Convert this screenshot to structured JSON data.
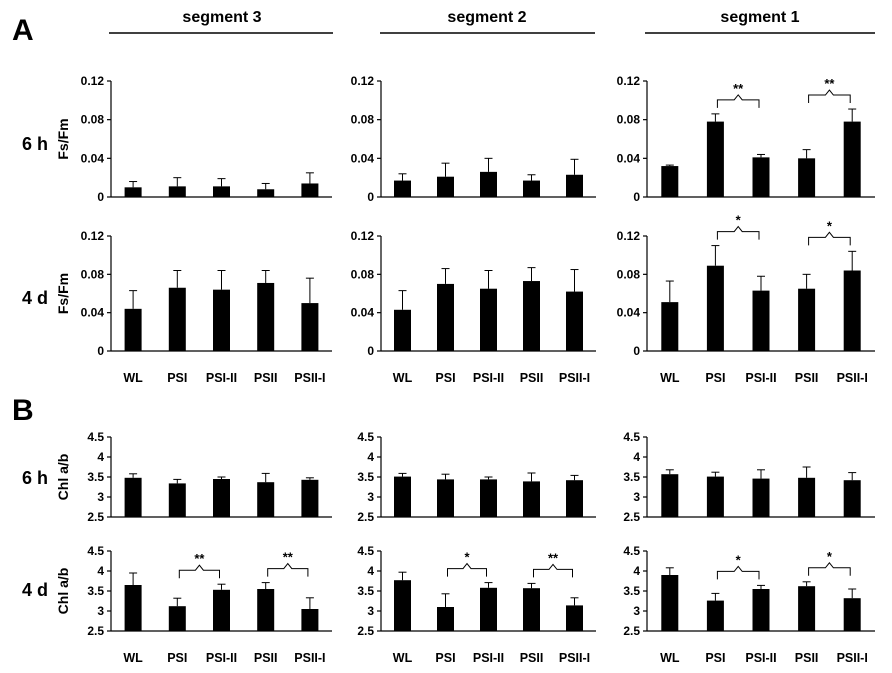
{
  "figure": {
    "panel_labels": [
      "A",
      "B"
    ],
    "segment_titles": [
      "segment 3",
      "segment 2",
      "segment 1"
    ],
    "row_labels": [
      "6 h",
      "4 d",
      "6 h",
      "4 d"
    ]
  },
  "chart_data": [
    {
      "type": "bar",
      "panel": "A",
      "time": "6 h",
      "segment": "segment 3",
      "ylabel": "Fs/Fm",
      "ylim": [
        0,
        0.12
      ],
      "yticks": [
        "0",
        "0.04",
        "0.08",
        "0.12"
      ],
      "categories": [
        "WL",
        "PSI",
        "PSI-II",
        "PSII",
        "PSII-I"
      ],
      "values": [
        0.01,
        0.011,
        0.011,
        0.008,
        0.014
      ],
      "errors": [
        0.006,
        0.009,
        0.008,
        0.006,
        0.011
      ],
      "significance": []
    },
    {
      "type": "bar",
      "panel": "A",
      "time": "6 h",
      "segment": "segment 2",
      "ylabel": "",
      "ylim": [
        0,
        0.12
      ],
      "yticks": [
        "0",
        "0.04",
        "0.08",
        "0.12"
      ],
      "categories": [
        "WL",
        "PSI",
        "PSI-II",
        "PSII",
        "PSII-I"
      ],
      "values": [
        0.017,
        0.021,
        0.026,
        0.017,
        0.023
      ],
      "errors": [
        0.007,
        0.014,
        0.014,
        0.006,
        0.016
      ],
      "significance": []
    },
    {
      "type": "bar",
      "panel": "A",
      "time": "6 h",
      "segment": "segment 1",
      "ylabel": "",
      "ylim": [
        0,
        0.12
      ],
      "yticks": [
        "0",
        "0.04",
        "0.08",
        "0.12"
      ],
      "categories": [
        "WL",
        "PSI",
        "PSI-II",
        "PSII",
        "PSII-I"
      ],
      "values": [
        0.032,
        0.078,
        0.041,
        0.04,
        0.078
      ],
      "errors": [
        0.001,
        0.008,
        0.003,
        0.009,
        0.013
      ],
      "significance": [
        {
          "from": 1,
          "to": 2,
          "label": "**"
        },
        {
          "from": 3,
          "to": 4,
          "label": "**"
        }
      ]
    },
    {
      "type": "bar",
      "panel": "A",
      "time": "4 d",
      "segment": "segment 3",
      "ylabel": "Fs/Fm",
      "ylim": [
        0,
        0.12
      ],
      "yticks": [
        "0",
        "0.04",
        "0.08",
        "0.12"
      ],
      "categories": [
        "WL",
        "PSI",
        "PSI-II",
        "PSII",
        "PSII-I"
      ],
      "values": [
        0.044,
        0.066,
        0.064,
        0.071,
        0.05
      ],
      "errors": [
        0.019,
        0.018,
        0.02,
        0.013,
        0.026
      ],
      "significance": []
    },
    {
      "type": "bar",
      "panel": "A",
      "time": "4 d",
      "segment": "segment 2",
      "ylabel": "",
      "ylim": [
        0,
        0.12
      ],
      "yticks": [
        "0",
        "0.04",
        "0.08",
        "0.12"
      ],
      "categories": [
        "WL",
        "PSI",
        "PSI-II",
        "PSII",
        "PSII-I"
      ],
      "values": [
        0.043,
        0.07,
        0.065,
        0.073,
        0.062
      ],
      "errors": [
        0.02,
        0.016,
        0.019,
        0.014,
        0.023
      ],
      "significance": []
    },
    {
      "type": "bar",
      "panel": "A",
      "time": "4 d",
      "segment": "segment 1",
      "ylabel": "",
      "ylim": [
        0,
        0.12
      ],
      "yticks": [
        "0",
        "0.04",
        "0.08",
        "0.12"
      ],
      "categories": [
        "WL",
        "PSI",
        "PSI-II",
        "PSII",
        "PSII-I"
      ],
      "values": [
        0.051,
        0.089,
        0.063,
        0.065,
        0.084
      ],
      "errors": [
        0.022,
        0.021,
        0.015,
        0.015,
        0.02
      ],
      "significance": [
        {
          "from": 1,
          "to": 2,
          "label": "*"
        },
        {
          "from": 3,
          "to": 4,
          "label": "*"
        }
      ]
    },
    {
      "type": "bar",
      "panel": "B",
      "time": "6 h",
      "segment": "segment 3",
      "ylabel": "Chl a/b",
      "ylim": [
        2.5,
        4.5
      ],
      "yticks": [
        "2.5",
        "3",
        "3.5",
        "4",
        "4.5"
      ],
      "categories": [
        "WL",
        "PSI",
        "PSI-II",
        "PSII",
        "PSII-I"
      ],
      "values": [
        3.48,
        3.34,
        3.45,
        3.37,
        3.43
      ],
      "errors": [
        0.1,
        0.1,
        0.05,
        0.22,
        0.05
      ],
      "significance": []
    },
    {
      "type": "bar",
      "panel": "B",
      "time": "6 h",
      "segment": "segment 2",
      "ylabel": "",
      "ylim": [
        2.5,
        4.5
      ],
      "yticks": [
        "2.5",
        "3",
        "3.5",
        "4",
        "4.5"
      ],
      "categories": [
        "WL",
        "PSI",
        "PSI-II",
        "PSII",
        "PSII-I"
      ],
      "values": [
        3.51,
        3.44,
        3.44,
        3.39,
        3.42
      ],
      "errors": [
        0.08,
        0.13,
        0.06,
        0.21,
        0.12
      ],
      "significance": []
    },
    {
      "type": "bar",
      "panel": "B",
      "time": "6 h",
      "segment": "segment 1",
      "ylabel": "",
      "ylim": [
        2.5,
        4.5
      ],
      "yticks": [
        "2.5",
        "3",
        "3.5",
        "4",
        "4.5"
      ],
      "categories": [
        "WL",
        "PSI",
        "PSI-II",
        "PSII",
        "PSII-I"
      ],
      "values": [
        3.57,
        3.51,
        3.46,
        3.48,
        3.42
      ],
      "errors": [
        0.11,
        0.11,
        0.22,
        0.27,
        0.19
      ],
      "significance": []
    },
    {
      "type": "bar",
      "panel": "B",
      "time": "4 d",
      "segment": "segment 3",
      "ylabel": "Chl a/b",
      "ylim": [
        2.5,
        4.5
      ],
      "yticks": [
        "2.5",
        "3",
        "3.5",
        "4",
        "4.5"
      ],
      "categories": [
        "WL",
        "PSI",
        "PSI-II",
        "PSII",
        "PSII-I"
      ],
      "values": [
        3.65,
        3.12,
        3.53,
        3.55,
        3.05
      ],
      "errors": [
        0.3,
        0.2,
        0.14,
        0.16,
        0.28
      ],
      "significance": [
        {
          "from": 1,
          "to": 2,
          "label": "**"
        },
        {
          "from": 3,
          "to": 4,
          "label": "**"
        }
      ]
    },
    {
      "type": "bar",
      "panel": "B",
      "time": "4 d",
      "segment": "segment 2",
      "ylabel": "",
      "ylim": [
        2.5,
        4.5
      ],
      "yticks": [
        "2.5",
        "3",
        "3.5",
        "4",
        "4.5"
      ],
      "categories": [
        "WL",
        "PSI",
        "PSI-II",
        "PSII",
        "PSII-I"
      ],
      "values": [
        3.77,
        3.1,
        3.58,
        3.57,
        3.14
      ],
      "errors": [
        0.2,
        0.33,
        0.13,
        0.12,
        0.19
      ],
      "significance": [
        {
          "from": 1,
          "to": 2,
          "label": "*"
        },
        {
          "from": 3,
          "to": 4,
          "label": "**"
        }
      ]
    },
    {
      "type": "bar",
      "panel": "B",
      "time": "4 d",
      "segment": "segment 1",
      "ylabel": "",
      "ylim": [
        2.5,
        4.5
      ],
      "yticks": [
        "2.5",
        "3",
        "3.5",
        "4",
        "4.5"
      ],
      "categories": [
        "WL",
        "PSI",
        "PSI-II",
        "PSII",
        "PSII-I"
      ],
      "values": [
        3.9,
        3.26,
        3.55,
        3.62,
        3.32
      ],
      "errors": [
        0.18,
        0.18,
        0.09,
        0.11,
        0.23
      ],
      "significance": [
        {
          "from": 1,
          "to": 2,
          "label": "*"
        },
        {
          "from": 3,
          "to": 4,
          "label": "*"
        }
      ]
    }
  ]
}
